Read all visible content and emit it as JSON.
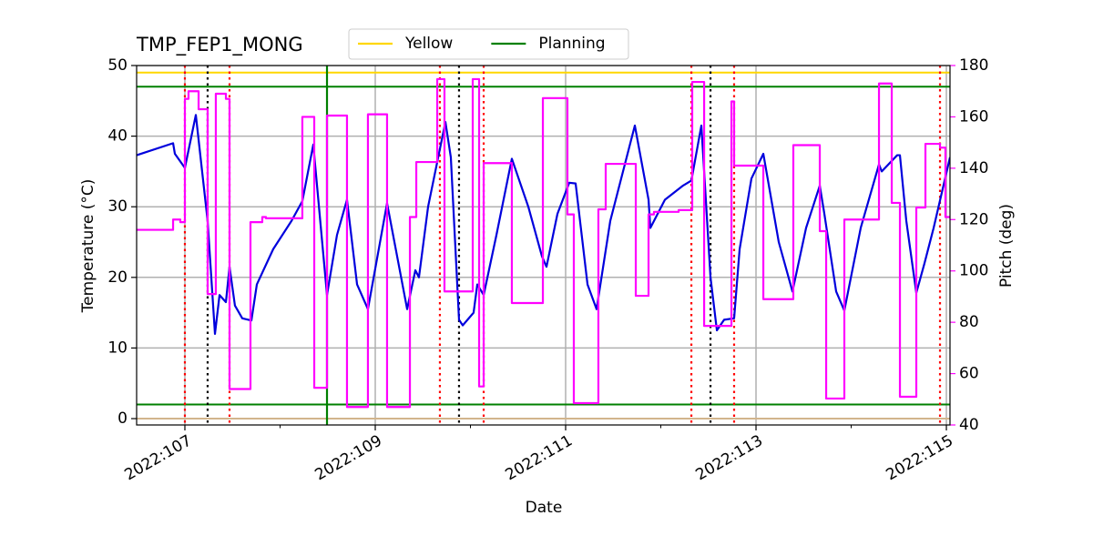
{
  "chart_data": {
    "type": "line",
    "title": "TMP_FEP1_MONG",
    "xlabel": "Date",
    "ylabel": "Temperature (°C)",
    "y2label": "Pitch (deg)",
    "xlim": [
      106.493,
      115.038
    ],
    "xticks": [
      {
        "value": 107,
        "label": "2022:107"
      },
      {
        "value": 109,
        "label": "2022:109"
      },
      {
        "value": 111,
        "label": "2022:111"
      },
      {
        "value": 113,
        "label": "2022:113"
      },
      {
        "value": 115,
        "label": "2022:115"
      }
    ],
    "xminorticks": [
      108,
      110,
      112,
      114
    ],
    "ylim": [
      -0.9,
      50
    ],
    "yticks": [
      0,
      10,
      20,
      30,
      40,
      50
    ],
    "y2lim": [
      40,
      180
    ],
    "y2ticks": [
      40,
      60,
      80,
      100,
      120,
      140,
      160,
      180
    ],
    "y2color": "#ff00ff",
    "grid": true,
    "legend": "top",
    "series": [
      {
        "color": "#0000dd",
        "x": [
          106.493,
          106.876,
          106.895,
          107.0,
          107.115,
          107.239,
          107.316,
          107.364,
          107.431,
          107.469,
          107.526,
          107.603,
          107.699,
          107.756,
          107.928,
          108.12,
          108.234,
          108.349,
          108.493,
          108.598,
          108.703,
          108.809,
          108.923,
          109.124,
          109.335,
          109.421,
          109.459,
          109.555,
          109.737,
          109.794,
          109.88,
          109.919,
          110.033,
          110.072,
          110.139,
          110.273,
          110.435,
          110.608,
          110.751,
          110.799,
          110.914,
          111.038,
          111.105,
          111.23,
          111.325,
          111.469,
          111.727,
          111.871,
          111.89,
          112.043,
          112.234,
          112.321,
          112.426,
          112.522,
          112.589,
          112.665,
          112.77,
          112.828,
          112.952,
          113.077,
          113.239,
          113.383,
          113.526,
          113.67,
          113.718,
          113.842,
          113.928,
          114.1,
          114.292,
          114.321,
          114.483,
          114.512,
          114.579,
          114.684,
          114.77,
          114.866,
          115.038
        ],
        "values": [
          37.3,
          39,
          37.5,
          35.5,
          43,
          28,
          12,
          17.5,
          16.5,
          21.5,
          16,
          14.2,
          13.9,
          19,
          24,
          28,
          30.8,
          38.8,
          17.5,
          26,
          31,
          19,
          15.5,
          30.5,
          15.5,
          21,
          20,
          30,
          42,
          37,
          14,
          13.2,
          15,
          19,
          17.5,
          26,
          36.8,
          30,
          23,
          21.5,
          29,
          33.4,
          33.3,
          19,
          15.5,
          28,
          41.5,
          31,
          27,
          31,
          33,
          33.7,
          41.5,
          20,
          12.5,
          14,
          14.2,
          24,
          34,
          37.5,
          25,
          18,
          27,
          33,
          29,
          18,
          15.3,
          27,
          36,
          35,
          37.3,
          37.3,
          28,
          17.8,
          22,
          27,
          37
        ]
      },
      {
        "color": "#ff00ff",
        "axis": "y2",
        "drawstyle": "steps-post",
        "x": [
          106.493,
          106.876,
          106.952,
          107.0,
          107.038,
          107.144,
          107.239,
          107.325,
          107.431,
          107.469,
          107.689,
          107.813,
          107.852,
          108.234,
          108.359,
          108.493,
          108.703,
          108.923,
          109.124,
          109.364,
          109.431,
          109.651,
          109.727,
          110.024,
          110.091,
          110.139,
          110.435,
          110.761,
          111.019,
          111.086,
          111.344,
          111.421,
          111.737,
          111.871,
          111.928,
          112.187,
          112.33,
          112.455,
          112.742,
          112.77,
          113.077,
          113.392,
          113.67,
          113.737,
          113.928,
          114.292,
          114.426,
          114.512,
          114.684,
          114.78,
          114.933,
          114.99,
          115.038
        ],
        "values": [
          116,
          120,
          119,
          167,
          170,
          163,
          91,
          169,
          167,
          54,
          119,
          121,
          120.5,
          160,
          54.5,
          160.5,
          47,
          161,
          47,
          121,
          142.4,
          174.7,
          92,
          174.7,
          55,
          142,
          87.5,
          167.3,
          122,
          48.5,
          124,
          141.7,
          90.3,
          122,
          123,
          123.7,
          173.6,
          78.6,
          166,
          141,
          89,
          149,
          115.5,
          50.3,
          120,
          173,
          126.5,
          51,
          124.7,
          149.5,
          148,
          121,
          121
        ]
      }
    ],
    "hlines": [
      {
        "name": "Yellow",
        "value": 49,
        "color": "#ffd700"
      },
      {
        "name": "Planning",
        "value": 47,
        "color": "#008000"
      },
      {
        "value": 2,
        "color": "#008000"
      },
      {
        "value": 0,
        "color": "#d2b48c"
      }
    ],
    "vlines": [
      {
        "x": 108.493,
        "color": "#008000",
        "style": "solid"
      },
      {
        "x": 107.0,
        "color": "#ff0000",
        "style": "dotted"
      },
      {
        "x": 107.469,
        "color": "#ff0000",
        "style": "dotted"
      },
      {
        "x": 109.679,
        "color": "#ff0000",
        "style": "dotted"
      },
      {
        "x": 110.139,
        "color": "#ff0000",
        "style": "dotted"
      },
      {
        "x": 112.321,
        "color": "#ff0000",
        "style": "dotted"
      },
      {
        "x": 112.77,
        "color": "#ff0000",
        "style": "dotted"
      },
      {
        "x": 114.933,
        "color": "#ff0000",
        "style": "dotted"
      },
      {
        "x": 107.239,
        "color": "#000000",
        "style": "dotted"
      },
      {
        "x": 109.88,
        "color": "#000000",
        "style": "dotted"
      },
      {
        "x": 112.522,
        "color": "#000000",
        "style": "dotted"
      }
    ]
  }
}
